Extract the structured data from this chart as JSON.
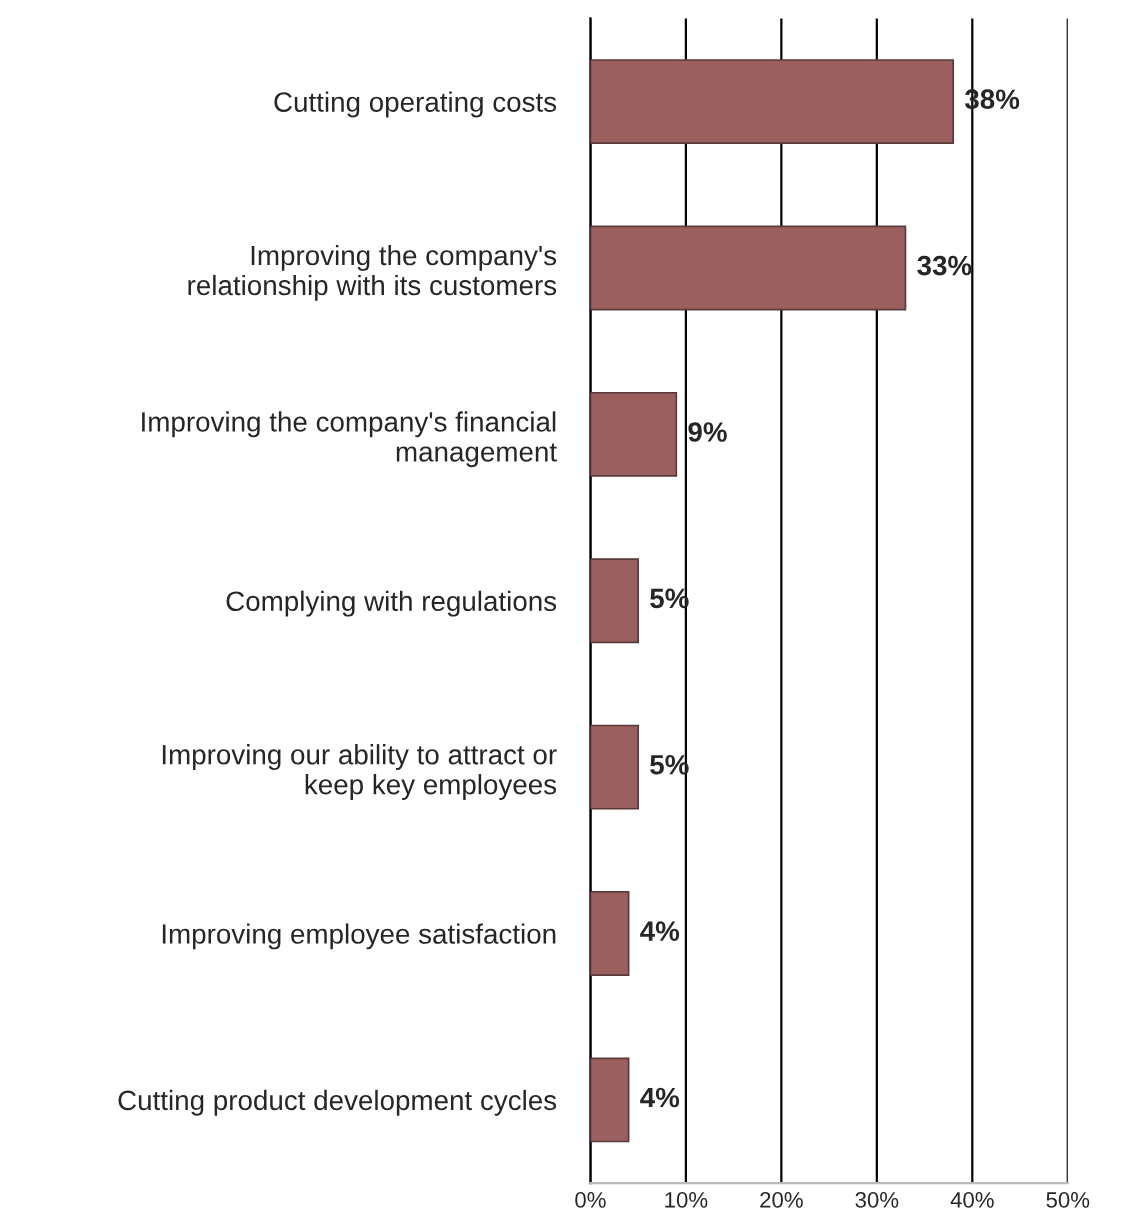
{
  "chart_data": {
    "type": "bar",
    "orientation": "horizontal",
    "categories": [
      "Cutting operating costs",
      "Improving the company's\nrelationship with its customers",
      "Improving the company's financial\nmanagement",
      "Complying with regulations",
      "Improving our ability to attract or\nkeep key employees",
      "Improving employee satisfaction",
      "Cutting product development cycles"
    ],
    "values": [
      38,
      33,
      9,
      5,
      5,
      4,
      4
    ],
    "value_labels": [
      "38%",
      "33%",
      "9%",
      "5%",
      "5%",
      "4%",
      "4%"
    ],
    "color": "#9b5f5f",
    "xlim": [
      0,
      50
    ],
    "xticks": [
      {
        "value": 0,
        "label": "0%"
      },
      {
        "value": 10,
        "label": "10%"
      },
      {
        "value": 20,
        "label": "20%"
      },
      {
        "value": 30,
        "label": "30%"
      },
      {
        "value": 40,
        "label": "40%"
      },
      {
        "value": 50,
        "label": "50%"
      }
    ],
    "grid": "x",
    "legend": false
  }
}
